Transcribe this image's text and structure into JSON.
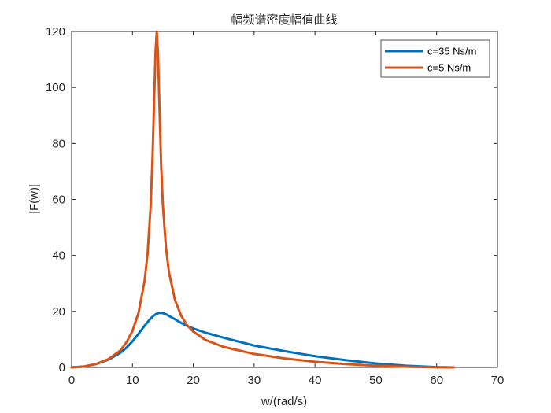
{
  "chart_data": {
    "type": "line",
    "title": "幅频谱密度幅值曲线",
    "xlabel": "w/(rad/s)",
    "ylabel": "|F(w)|",
    "xlim": [
      0,
      70
    ],
    "ylim": [
      0,
      120
    ],
    "xticks": [
      0,
      10,
      20,
      30,
      40,
      50,
      60,
      70
    ],
    "yticks": [
      0,
      20,
      40,
      60,
      80,
      100,
      120
    ],
    "grid": false,
    "legend_position": "top-right",
    "series": [
      {
        "name": "c=35 Ns/m",
        "color": "#0072bd",
        "x": [
          0,
          2,
          4,
          6,
          8,
          9,
          10,
          11,
          12,
          13,
          13.5,
          14,
          14.5,
          15,
          15.5,
          16,
          17,
          18,
          19,
          20,
          22,
          25,
          30,
          35,
          40,
          45,
          50,
          55,
          60,
          62.8
        ],
        "y": [
          0,
          0.3,
          1.2,
          2.7,
          5.2,
          7.0,
          9.3,
          12.0,
          14.9,
          17.5,
          18.5,
          19.2,
          19.5,
          19.4,
          19.0,
          18.4,
          17.2,
          15.9,
          14.8,
          13.9,
          12.4,
          10.6,
          7.8,
          5.8,
          4.0,
          2.6,
          1.4,
          0.6,
          0.1,
          0
        ]
      },
      {
        "name": "c=5 Ns/m",
        "color": "#d95319",
        "x": [
          0,
          2,
          4,
          6,
          8,
          9,
          10,
          11,
          12,
          12.5,
          13,
          13.3,
          13.6,
          13.8,
          14.0,
          14.2,
          14.4,
          14.7,
          15,
          15.5,
          16,
          17,
          18,
          19,
          20,
          22,
          25,
          30,
          35,
          40,
          45,
          50,
          55,
          60,
          62.8
        ],
        "y": [
          0,
          0.3,
          1.2,
          2.9,
          6.0,
          8.9,
          13.0,
          19.5,
          31.0,
          41.0,
          58.0,
          75.0,
          98.0,
          113.0,
          120.0,
          112.0,
          96.0,
          73.0,
          58.0,
          43.0,
          34.0,
          24.0,
          18.5,
          15.0,
          12.8,
          9.8,
          7.3,
          4.8,
          3.2,
          2.0,
          1.2,
          0.6,
          0.25,
          0.05,
          0
        ]
      }
    ]
  }
}
